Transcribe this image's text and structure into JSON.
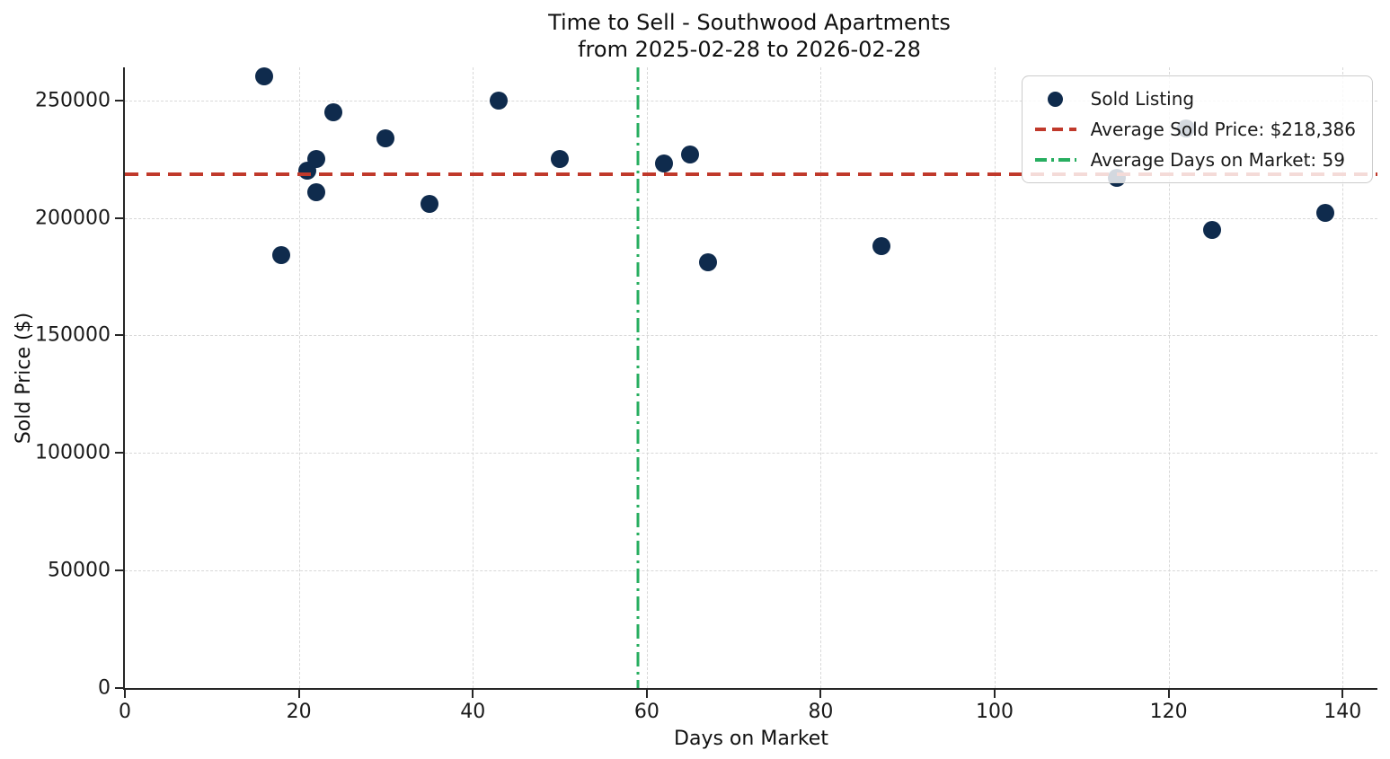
{
  "header": {
    "line1": "Time to Sell - Southwood Apartments",
    "line2": "from 2025-02-28 to 2026-02-28"
  },
  "chart_data": {
    "type": "scatter",
    "title": "Time to Sell - Southwood Apartments\nfrom 2025-02-28 to 2026-02-28",
    "xlabel": "Days on Market",
    "ylabel": "Sold Price ($)",
    "xlim": [
      0,
      144
    ],
    "ylim": [
      0,
      264000
    ],
    "x_ticks": [
      0,
      20,
      40,
      60,
      80,
      100,
      120,
      140
    ],
    "y_ticks": [
      0,
      50000,
      100000,
      150000,
      200000,
      250000
    ],
    "grid": true,
    "legend_position": "upper right",
    "series": [
      {
        "name": "Sold Listing",
        "marker": "circle",
        "color": "#0f2b4d",
        "points": [
          [
            16,
            260000
          ],
          [
            18,
            184000
          ],
          [
            21,
            220000
          ],
          [
            22,
            225000
          ],
          [
            22,
            211000
          ],
          [
            24,
            245000
          ],
          [
            30,
            234000
          ],
          [
            35,
            206000
          ],
          [
            43,
            250000
          ],
          [
            50,
            225000
          ],
          [
            62,
            223000
          ],
          [
            65,
            227000
          ],
          [
            67,
            181000
          ],
          [
            87,
            188000
          ],
          [
            114,
            217000
          ],
          [
            122,
            238000
          ],
          [
            125,
            195000
          ],
          [
            138,
            202000
          ]
        ]
      }
    ],
    "reference_lines": [
      {
        "name": "Average Sold Price: $218,386",
        "orientation": "horizontal",
        "value": 218386,
        "style": "dashed",
        "color": "#c0392b"
      },
      {
        "name": "Average Days on Market: 59",
        "orientation": "vertical",
        "value": 59,
        "style": "dashdot",
        "color": "#27ae60"
      }
    ]
  },
  "colors": {
    "point": "#0f2b4d",
    "avg_price_line": "#c0392b",
    "avg_days_line": "#27ae60",
    "grid": "#d8d8d8",
    "spine": "#262626",
    "legend_border": "#cccccc"
  }
}
